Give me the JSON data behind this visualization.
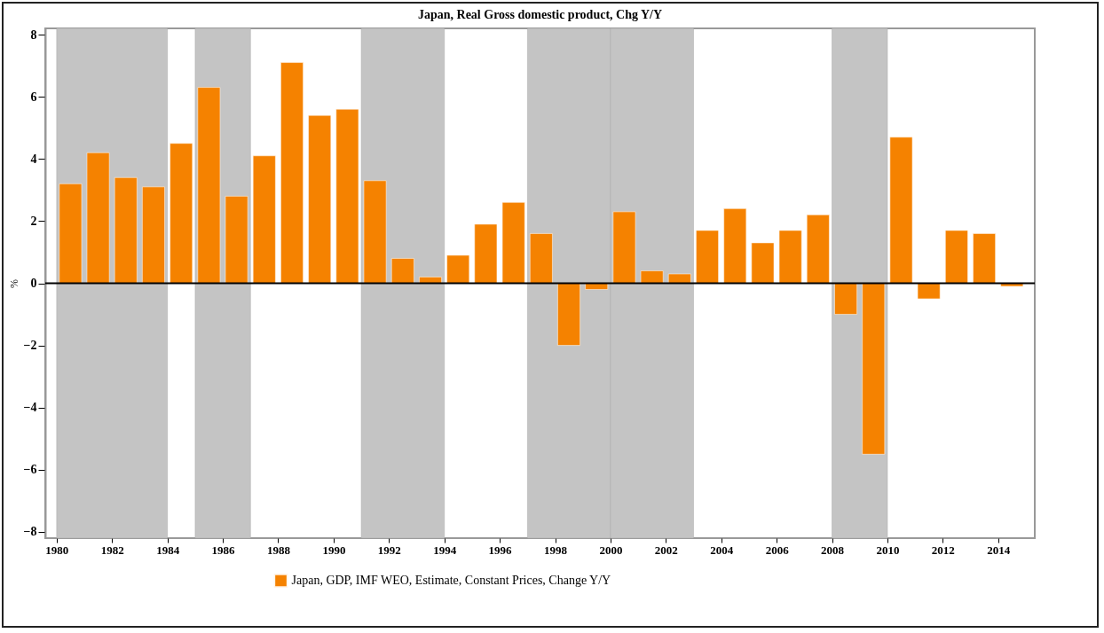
{
  "chart_data": {
    "type": "bar",
    "title": "Japan, Real Gross domestic product, Chg Y/Y",
    "ylabel": "%",
    "x": [
      "1980-07",
      "1981-07",
      "1982-07",
      "1983-07",
      "1984-07",
      "1985-07",
      "1986-07",
      "1987-07",
      "1988-07",
      "1989-07",
      "1990-07",
      "1991-07",
      "1992-07",
      "1993-07",
      "1994-07",
      "1995-07",
      "1996-07",
      "1997-07",
      "1998-07",
      "1999-07",
      "2000-07",
      "2001-07",
      "2002-07",
      "2003-07",
      "2004-07",
      "2005-07",
      "2006-07",
      "2007-07",
      "2008-07",
      "2009-07",
      "2010-07",
      "2011-07",
      "2012-07",
      "2013-07",
      "2014-07"
    ],
    "series": [
      {
        "name": "Japan, GDP, IMF WEO, Estimate, Constant Prices, Change Y/Y",
        "color": "#f58200",
        "values": [
          3.2,
          4.2,
          3.4,
          3.1,
          4.5,
          6.3,
          2.8,
          4.1,
          7.1,
          5.4,
          5.6,
          3.3,
          0.8,
          0.2,
          0.9,
          1.9,
          2.6,
          1.6,
          -2.0,
          -0.2,
          2.3,
          0.4,
          0.3,
          1.7,
          2.4,
          1.3,
          1.7,
          2.2,
          -1.0,
          -5.5,
          4.7,
          -0.5,
          1.7,
          1.6,
          -0.1
        ]
      }
    ],
    "xlim": [
      "1979-10",
      "2015-03"
    ],
    "xticks": [
      "1980",
      "1982",
      "1984",
      "1986",
      "1988",
      "1990",
      "1992",
      "1994",
      "1996",
      "1998",
      "2000",
      "2002",
      "2004",
      "2006",
      "2008",
      "2010",
      "2012",
      "2014"
    ],
    "ylim": [
      -8.2,
      8.2
    ],
    "yticks": [
      -8,
      -6,
      -4,
      -2,
      0,
      2,
      4,
      6,
      8
    ],
    "bands": [
      {
        "axis": "x",
        "from": "1980",
        "to": "1984",
        "color": "#c4c4c4"
      },
      {
        "axis": "x",
        "from": "1985",
        "to": "1987",
        "color": "#c4c4c4"
      },
      {
        "axis": "x",
        "from": "1991",
        "to": "1994",
        "color": "#c4c4c4"
      },
      {
        "axis": "x",
        "from": "1997",
        "to": "2000",
        "color": "#c4c4c4"
      },
      {
        "axis": "x",
        "from": "2000",
        "to": "2003",
        "color": "#c4c4c4"
      },
      {
        "axis": "x",
        "from": "2008",
        "to": "2010",
        "color": "#c4c4c4"
      }
    ],
    "ref_lines": [
      {
        "axis": "y",
        "value": 0,
        "color": "#000000"
      }
    ],
    "grid": false,
    "legend": "bottom"
  }
}
